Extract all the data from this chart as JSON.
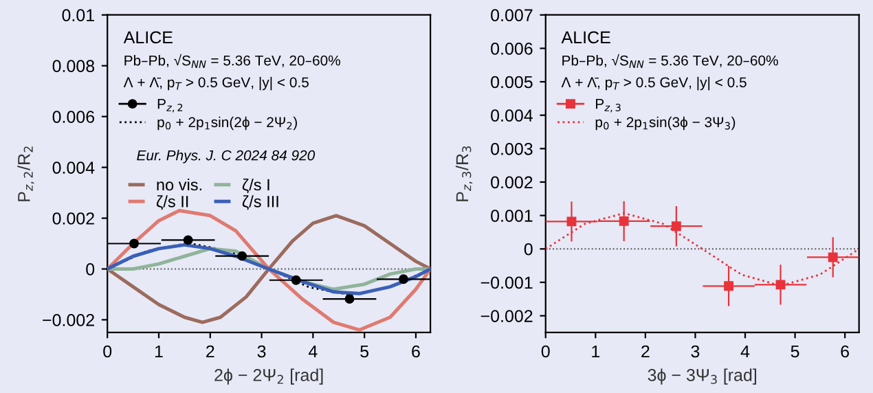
{
  "chart_data": [
    {
      "type": "line",
      "xlabel": "2ϕ − 2Ψ$_{2}$ [rad]",
      "ylabel": "P$_{z,2}$/R$_{2}$",
      "xlim": [
        0,
        6.283
      ],
      "ylim": [
        -0.0025,
        0.01
      ],
      "xticks": [
        0,
        1,
        2,
        3,
        4,
        5,
        6
      ],
      "yticks": [
        -0.002,
        0,
        0.002,
        0.004,
        0.006,
        0.008,
        0.01
      ],
      "grid": false,
      "legend": "top left",
      "annotations": [
        "ALICE",
        "Pb–Pb, √S$_{NN}$ = 5.36 TeV, 20–60%",
        "Λ + Λ̄, p$_{T}$ > 0.5 GeV, |y| < 0.5",
        "Eur. Phys. J. C 2024 84 920"
      ],
      "ref_lines": [
        {
          "axis": "y",
          "value": 0,
          "color": "#555555",
          "line_style": "dotted"
        }
      ],
      "series": [
        {
          "name": "P$_{z,2}$",
          "type": "scatter",
          "marker": "circle",
          "color": "#000000",
          "x": [
            0.52,
            1.57,
            2.62,
            3.67,
            4.71,
            5.76
          ],
          "values": [
            0.001,
            0.00114,
            0.00051,
            -0.00044,
            -0.00118,
            -0.0004
          ],
          "xerrors": [
            0.52,
            0.52,
            0.52,
            0.52,
            0.52,
            0.52
          ]
        },
        {
          "name": "p$_{0}$ + 2p$_{1}$sin(2ϕ − 2Ψ$_{2}$)",
          "line_style": "dotted",
          "color": "#000000",
          "x": [
            0,
            0.785,
            1.571,
            2.356,
            3.142,
            3.927,
            4.712,
            5.498,
            6.283
          ],
          "values": [
            0,
            0.00072,
            0.00102,
            0.00072,
            0,
            -0.00072,
            -0.00102,
            -0.00072,
            0
          ]
        },
        {
          "name": "no vis.",
          "line_style": "solid",
          "color": "#9c6b5e",
          "x": [
            0,
            0.5,
            1.0,
            1.5,
            1.85,
            2.2,
            2.7,
            3.14,
            3.6,
            4.0,
            4.45,
            5.0,
            5.5,
            6.0,
            6.283
          ],
          "values": [
            0,
            -0.0007,
            -0.0014,
            -0.0019,
            -0.0021,
            -0.0019,
            -0.0011,
            0,
            0.0011,
            0.0018,
            0.0021,
            0.0017,
            0.001,
            0.0003,
            0
          ]
        },
        {
          "name": "ζ/s I",
          "line_style": "solid",
          "color": "#8fb49a",
          "x": [
            0,
            0.5,
            1.0,
            1.5,
            2.0,
            2.5,
            3.14,
            3.8,
            4.4,
            5.0,
            5.5,
            6.0,
            6.283
          ],
          "values": [
            0,
            0,
            0.0002,
            0.0005,
            0.0008,
            0.0007,
            0,
            -0.0005,
            -0.0008,
            -0.0006,
            -0.0002,
            0,
            0
          ]
        },
        {
          "name": "ζ/s II",
          "line_style": "solid",
          "color": "#e07a70",
          "x": [
            0,
            0.5,
            1.0,
            1.4,
            2.0,
            2.5,
            3.14,
            3.8,
            4.4,
            4.9,
            5.5,
            6.0,
            6.283
          ],
          "values": [
            0,
            0.001,
            0.0019,
            0.0023,
            0.0021,
            0.0015,
            0,
            -0.0012,
            -0.0021,
            -0.0024,
            -0.0019,
            -0.0008,
            0
          ]
        },
        {
          "name": "ζ/s III",
          "line_style": "solid",
          "color": "#3a5fb8",
          "x": [
            0,
            0.5,
            1.0,
            1.5,
            2.0,
            2.5,
            3.14,
            3.8,
            4.4,
            4.9,
            5.5,
            6.0,
            6.283
          ],
          "values": [
            0,
            0.0005,
            0.0008,
            0.00095,
            0.0008,
            0.0005,
            0,
            -0.0005,
            -0.0009,
            -0.00097,
            -0.0007,
            -0.0003,
            0
          ]
        }
      ]
    },
    {
      "type": "line",
      "xlabel": "3ϕ − 3Ψ$_{3}$ [rad]",
      "ylabel": "P$_{z,3}$/R$_{3}$",
      "xlim": [
        0,
        6.283
      ],
      "ylim": [
        -0.0025,
        0.007
      ],
      "xticks": [
        0,
        1,
        2,
        3,
        4,
        5,
        6
      ],
      "yticks": [
        -0.002,
        -0.001,
        0,
        0.001,
        0.002,
        0.003,
        0.004,
        0.005,
        0.006,
        0.007
      ],
      "grid": false,
      "legend": "top left",
      "annotations": [
        "ALICE",
        "Pb–Pb, √S$_{NN}$ = 5.36 TeV, 20–60%",
        "Λ + Λ̄, p$_{T}$ > 0.5 GeV, |y| < 0.5"
      ],
      "ref_lines": [
        {
          "axis": "y",
          "value": 0,
          "color": "#555555",
          "line_style": "dotted"
        }
      ],
      "series": [
        {
          "name": "P$_{z,3}$",
          "type": "scatter",
          "marker": "square",
          "color": "#e8333a",
          "x": [
            0.52,
            1.57,
            2.62,
            3.67,
            4.71,
            5.76
          ],
          "values": [
            0.00082,
            0.00083,
            0.00068,
            -0.00111,
            -0.00107,
            -0.00025
          ],
          "xerrors": [
            0.52,
            0.52,
            0.52,
            0.52,
            0.52,
            0.52
          ],
          "errors": [
            0.0006,
            0.0006,
            0.0006,
            0.0006,
            0.0006,
            0.0006
          ]
        },
        {
          "name": "p$_{0}$ + 2p$_{1}$sin(3ϕ − 3Ψ$_{3}$)",
          "line_style": "dotted",
          "color": "#e8333a",
          "x": [
            0,
            0.785,
            1.571,
            2.356,
            3.142,
            3.927,
            4.712,
            5.498,
            6.283
          ],
          "values": [
            0,
            0.00075,
            0.00107,
            0.00075,
            0,
            -0.00077,
            -0.0011,
            -0.00077,
            0
          ]
        }
      ]
    }
  ]
}
